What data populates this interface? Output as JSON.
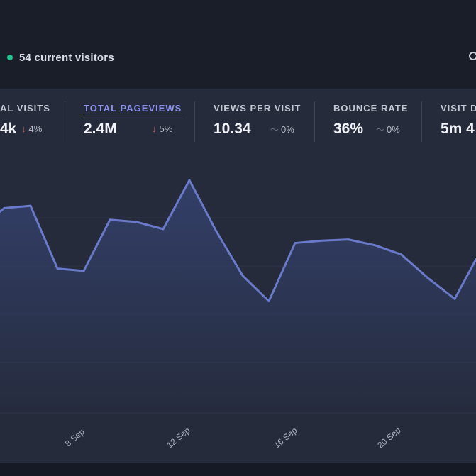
{
  "header": {
    "visitors_text": "54 current visitors",
    "live_color": "#22c48c"
  },
  "stats": [
    {
      "label": "AL VISITS",
      "value": "4k",
      "change": "4%",
      "trend": "down",
      "active": false
    },
    {
      "label": "TOTAL PAGEVIEWS",
      "value": "2.4M",
      "change": "5%",
      "trend": "down",
      "active": true
    },
    {
      "label": "VIEWS PER VISIT",
      "value": "10.34",
      "change": "0%",
      "trend": "flat",
      "active": false
    },
    {
      "label": "BOUNCE RATE",
      "value": "36%",
      "change": "0%",
      "trend": "flat",
      "active": false
    },
    {
      "label": "VISIT D",
      "value": "5m 4",
      "change": "",
      "trend": "none",
      "active": false
    }
  ],
  "chart_data": {
    "type": "area",
    "x": [
      "5 Sep",
      "6 Sep",
      "7 Sep",
      "8 Sep",
      "9 Sep",
      "10 Sep",
      "11 Sep",
      "12 Sep",
      "13 Sep",
      "14 Sep",
      "15 Sep",
      "16 Sep",
      "17 Sep",
      "18 Sep",
      "19 Sep",
      "20 Sep",
      "21 Sep",
      "22 Sep",
      "23 Sep"
    ],
    "values": [
      0.88,
      0.89,
      0.62,
      0.61,
      0.83,
      0.82,
      0.79,
      1.0,
      0.78,
      0.59,
      0.48,
      0.73,
      0.74,
      0.745,
      0.72,
      0.68,
      0.58,
      0.49,
      0.66
    ],
    "tick_labels": [
      "8 Sep",
      "12 Sep",
      "16 Sep",
      "20 Sep"
    ],
    "grid": true,
    "line_color": "#6a79c9",
    "fill_color": "#33406b"
  }
}
